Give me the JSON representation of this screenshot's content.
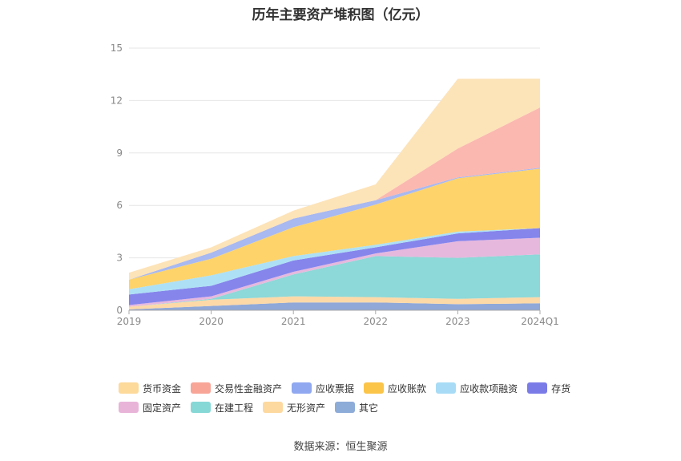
{
  "title": "历年主要资产堆积图（亿元）",
  "source": "数据来源：恒生聚源",
  "chart_data": {
    "type": "area",
    "stacked": true,
    "categories": [
      "2019",
      "2020",
      "2021",
      "2022",
      "2023",
      "2024Q1"
    ],
    "ylim": [
      0,
      15
    ],
    "yticks": [
      0,
      3,
      6,
      9,
      12,
      15
    ],
    "grid": true,
    "legend_position": "bottom",
    "series": [
      {
        "name": "其它",
        "color": "#8fa8d8",
        "values": [
          0.05,
          0.25,
          0.45,
          0.45,
          0.35,
          0.4
        ]
      },
      {
        "name": "无形资产",
        "color": "#fdd9a8",
        "values": [
          0.15,
          0.35,
          0.35,
          0.3,
          0.3,
          0.35
        ]
      },
      {
        "name": "在建工程",
        "color": "#8dd8d8",
        "values": [
          0.0,
          0.05,
          1.25,
          2.35,
          2.35,
          2.45
        ]
      },
      {
        "name": "固定资产",
        "color": "#e6b8de",
        "values": [
          0.1,
          0.15,
          0.15,
          0.15,
          0.95,
          0.95
        ]
      },
      {
        "name": "存货",
        "color": "#8585ec",
        "values": [
          0.6,
          0.6,
          0.65,
          0.35,
          0.45,
          0.55
        ]
      },
      {
        "name": "应收款项融资",
        "color": "#aee0f5",
        "values": [
          0.3,
          0.6,
          0.25,
          0.15,
          0.1,
          0.0
        ]
      },
      {
        "name": "应收账款",
        "color": "#fdd36a",
        "values": [
          0.55,
          0.95,
          1.65,
          2.3,
          3.05,
          3.4
        ]
      },
      {
        "name": "应收票据",
        "color": "#a8b8f0",
        "values": [
          0.0,
          0.35,
          0.5,
          0.25,
          0.05,
          0.05
        ]
      },
      {
        "name": "交易性金融资产",
        "color": "#fbb8b0",
        "values": [
          0.0,
          0.0,
          0.0,
          0.0,
          1.65,
          3.45
        ]
      },
      {
        "name": "货币资金",
        "color": "#fde3b8",
        "values": [
          0.4,
          0.3,
          0.45,
          0.9,
          4.0,
          1.65
        ]
      }
    ],
    "legend": [
      {
        "name": "货币资金",
        "color": "#fdd99a"
      },
      {
        "name": "交易性金融资产",
        "color": "#f8a598"
      },
      {
        "name": "应收票据",
        "color": "#8fa8f0"
      },
      {
        "name": "应收账款",
        "color": "#fbc54a"
      },
      {
        "name": "应收款项融资",
        "color": "#a8dcf6"
      },
      {
        "name": "存货",
        "color": "#7b7be8"
      },
      {
        "name": "固定资产",
        "color": "#e8b4d8"
      },
      {
        "name": "在建工程",
        "color": "#86d8d6"
      },
      {
        "name": "无形资产",
        "color": "#fdd9a0"
      },
      {
        "name": "其它",
        "color": "#8eacd8"
      }
    ]
  }
}
